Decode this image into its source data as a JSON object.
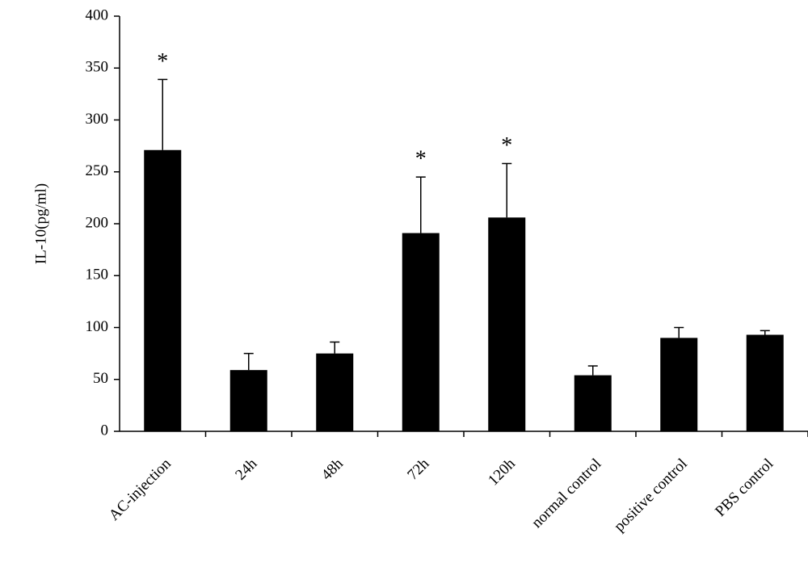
{
  "chart_data": {
    "type": "bar",
    "y_label": "IL-10(pg/ml)",
    "categories": [
      "AC-injection",
      "24h",
      "48h",
      "72h",
      "120h",
      "normal control",
      "positive control",
      "PBS control"
    ],
    "values": [
      271,
      59,
      75,
      191,
      206,
      54,
      90,
      93
    ],
    "errors": [
      68,
      16,
      11,
      54,
      52,
      9,
      10,
      4
    ],
    "markers": [
      "*",
      null,
      null,
      "*",
      "*",
      null,
      null,
      null
    ],
    "color": "#000000",
    "ylim": [
      0,
      400
    ],
    "yticks": [
      0,
      50,
      100,
      150,
      200,
      250,
      300,
      350,
      400
    ],
    "grid": false
  }
}
